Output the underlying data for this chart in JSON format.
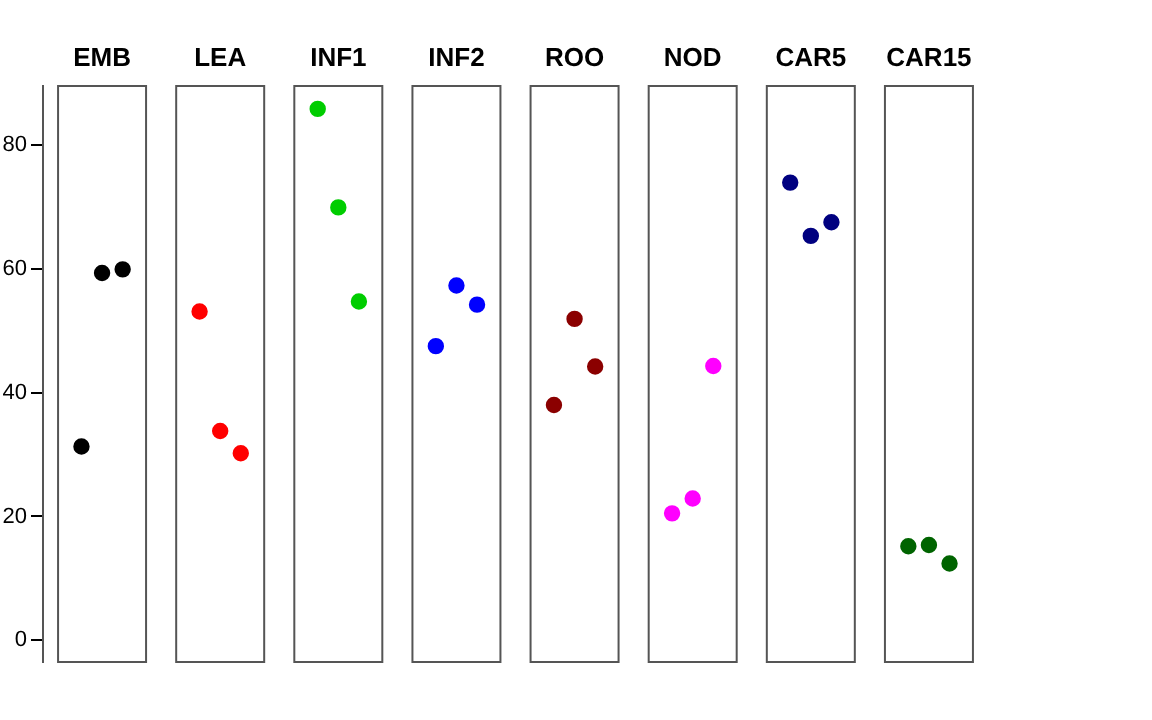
{
  "chart_data": {
    "type": "scatter",
    "categories": [
      "EMB",
      "LEA",
      "INF1",
      "INF2",
      "ROO",
      "NOD",
      "CAR5",
      "CAR15"
    ],
    "series": [
      {
        "color": "#000000",
        "x": [
          "EMB",
          "EMB",
          "EMB"
        ],
        "values": [
          31.3,
          59.3,
          59.9
        ]
      },
      {
        "color": "#ff0000",
        "x": [
          "LEA",
          "LEA",
          "LEA"
        ],
        "values": [
          53.1,
          33.8,
          30.2
        ]
      },
      {
        "color": "#00cd00",
        "x": [
          "INF1",
          "INF1",
          "INF1"
        ],
        "values": [
          85.8,
          69.9,
          54.7
        ]
      },
      {
        "color": "#0000ff",
        "x": [
          "INF2",
          "INF2",
          "INF2"
        ],
        "values": [
          47.5,
          57.3,
          54.2
        ]
      },
      {
        "color": "#8b0000",
        "x": [
          "ROO",
          "ROO",
          "ROO"
        ],
        "values": [
          38.0,
          51.9,
          44.2
        ]
      },
      {
        "color": "#ff00ff",
        "x": [
          "NOD",
          "NOD",
          "NOD"
        ],
        "values": [
          20.5,
          22.9,
          44.3
        ]
      },
      {
        "color": "#000080",
        "x": [
          "CAR5",
          "CAR5",
          "CAR5"
        ],
        "values": [
          73.9,
          65.3,
          67.5
        ]
      },
      {
        "color": "#006400",
        "x": [
          "CAR15",
          "CAR15",
          "CAR15"
        ],
        "values": [
          15.2,
          15.4,
          12.4
        ]
      }
    ],
    "ylim": [
      -3.5,
      89.5
    ],
    "yticks": [
      0,
      20,
      40,
      60,
      80
    ],
    "marker": "circle"
  }
}
